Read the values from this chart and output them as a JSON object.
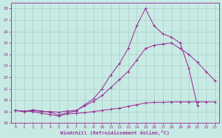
{
  "xlabel": "Windchill (Refroidissement éolien,°C)",
  "background_color": "#c8eae4",
  "grid_color": "#aaccc6",
  "line_color": "#993399",
  "xlim_min": -0.5,
  "xlim_max": 23.5,
  "ylim_min": 18,
  "ylim_max": 28.5,
  "yticks": [
    18,
    19,
    20,
    21,
    22,
    23,
    24,
    25,
    26,
    27,
    28
  ],
  "xticks": [
    0,
    1,
    2,
    3,
    4,
    5,
    6,
    7,
    8,
    9,
    10,
    11,
    12,
    13,
    14,
    15,
    16,
    17,
    18,
    19,
    20,
    21,
    22,
    23
  ],
  "line1_x": [
    0,
    1,
    2,
    3,
    4,
    5,
    6,
    7,
    8,
    9,
    10,
    11,
    12,
    13,
    14,
    15,
    16,
    17,
    18,
    19,
    20,
    21,
    22,
    23
  ],
  "line1_y": [
    19.1,
    19.05,
    19.0,
    18.85,
    18.75,
    18.6,
    18.8,
    18.85,
    18.9,
    19.0,
    19.1,
    19.2,
    19.3,
    19.45,
    19.6,
    19.75,
    19.8,
    19.8,
    19.85,
    19.85,
    19.85,
    19.85,
    19.85,
    19.85
  ],
  "line2_x": [
    0,
    1,
    2,
    3,
    4,
    5,
    6,
    7,
    8,
    9,
    10,
    11,
    12,
    13,
    14,
    15,
    16,
    17,
    18,
    19,
    20,
    21,
    22,
    23
  ],
  "line2_y": [
    19.1,
    19.0,
    19.1,
    19.0,
    19.0,
    18.95,
    19.05,
    19.1,
    19.5,
    19.9,
    20.4,
    21.1,
    21.8,
    22.5,
    23.5,
    24.5,
    24.8,
    24.9,
    25.0,
    24.5,
    24.0,
    23.3,
    22.5,
    21.7
  ],
  "line3_x": [
    0,
    1,
    2,
    3,
    4,
    5,
    6,
    7,
    8,
    9,
    10,
    11,
    12,
    13,
    14,
    15,
    16,
    17,
    18,
    19,
    20,
    21
  ],
  "line3_y": [
    19.1,
    19.0,
    19.15,
    19.05,
    18.95,
    18.7,
    18.9,
    19.05,
    19.6,
    20.1,
    21.0,
    22.2,
    23.2,
    24.5,
    26.5,
    28.0,
    26.5,
    25.8,
    25.5,
    25.0,
    22.8,
    19.5
  ]
}
